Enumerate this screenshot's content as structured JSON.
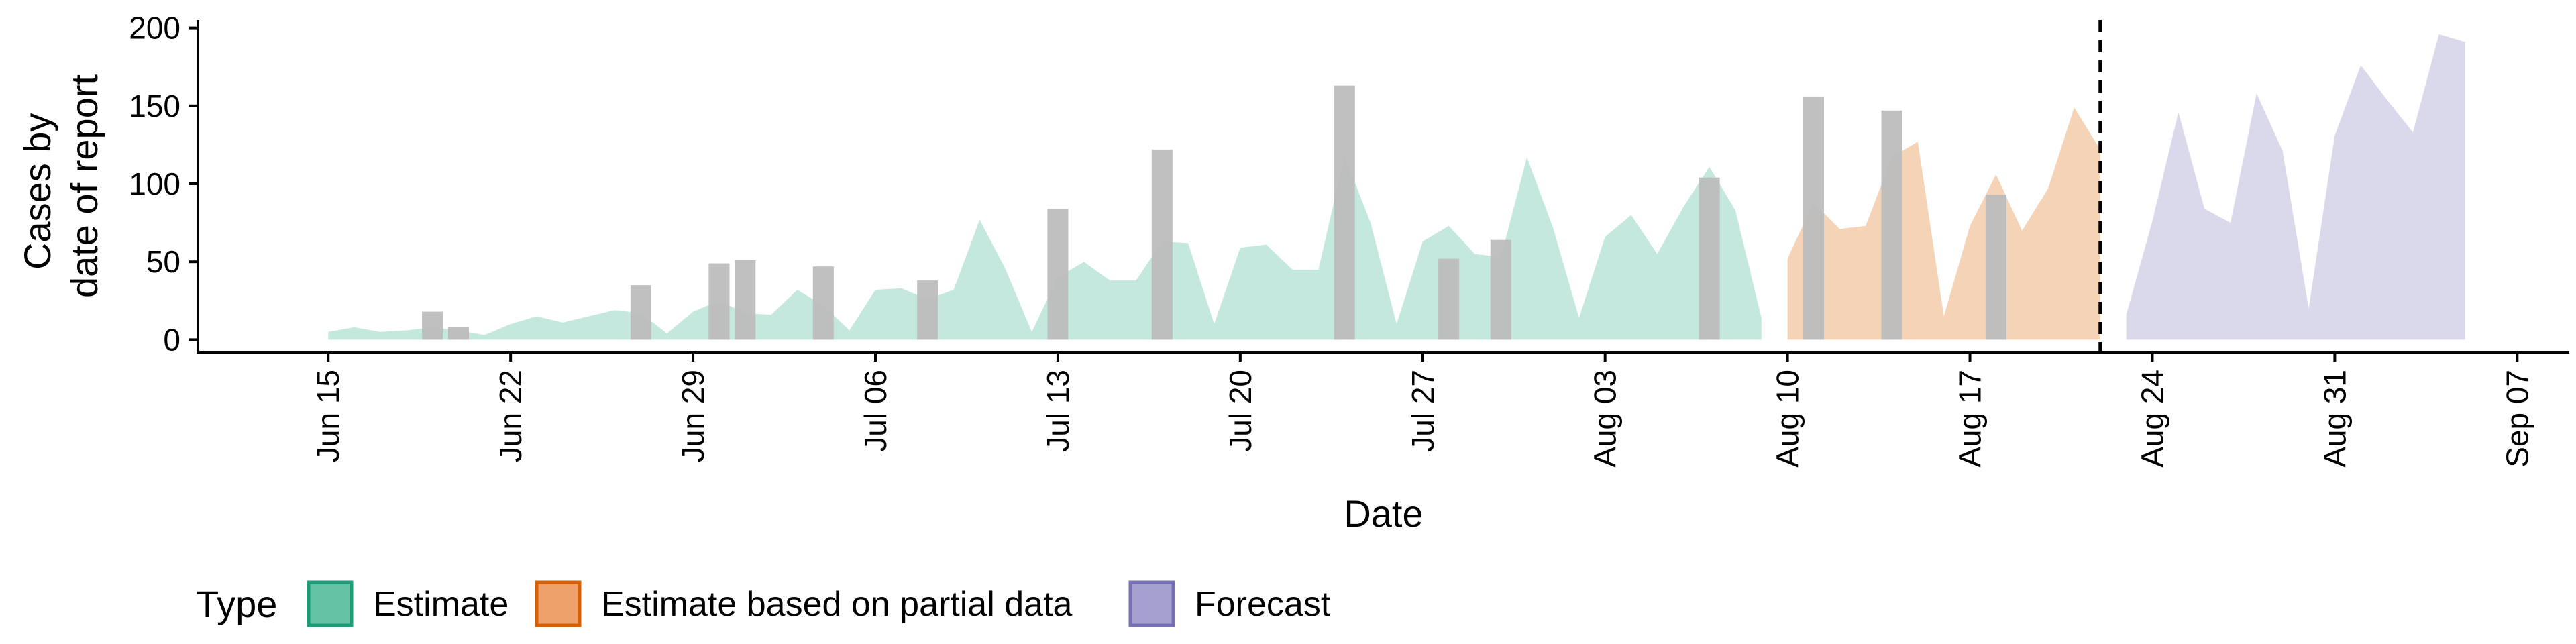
{
  "chart_data": {
    "type": "area",
    "xlabel": "Date",
    "ylabel_lines": [
      "Cases by",
      "date of report"
    ],
    "ylim": [
      -8,
      205
    ],
    "yticks": [
      0,
      50,
      100,
      150,
      200
    ],
    "x_range": [
      "2020-06-10",
      "2020-09-09"
    ],
    "x_ticks": [
      {
        "date": "2020-06-15",
        "label": "Jun 15"
      },
      {
        "date": "2020-06-22",
        "label": "Jun 22"
      },
      {
        "date": "2020-06-29",
        "label": "Jun 29"
      },
      {
        "date": "2020-07-06",
        "label": "Jul 06"
      },
      {
        "date": "2020-07-13",
        "label": "Jul 13"
      },
      {
        "date": "2020-07-20",
        "label": "Jul 20"
      },
      {
        "date": "2020-07-27",
        "label": "Jul 27"
      },
      {
        "date": "2020-08-03",
        "label": "Aug 03"
      },
      {
        "date": "2020-08-10",
        "label": "Aug 10"
      },
      {
        "date": "2020-08-17",
        "label": "Aug 17"
      },
      {
        "date": "2020-08-24",
        "label": "Aug 24"
      },
      {
        "date": "2020-08-31",
        "label": "Aug 31"
      },
      {
        "date": "2020-09-07",
        "label": "Sep 07"
      }
    ],
    "forecast_boundary_date": "2020-08-22",
    "legend": {
      "title": "Type",
      "position": "bottom-left",
      "entries": [
        {
          "name": "Estimate",
          "fill": "#66c2a5",
          "stroke": "#1b9e77"
        },
        {
          "name": "Estimate based on partial data",
          "fill": "#eda06a",
          "stroke": "#d95f02"
        },
        {
          "name": "Forecast",
          "fill": "#a5a0cd",
          "stroke": "#7570b3"
        }
      ]
    },
    "series": [
      {
        "name": "Estimate",
        "fill": "#c4e8dd",
        "points": [
          [
            "2020-06-15",
            5
          ],
          [
            "2020-06-16",
            8
          ],
          [
            "2020-06-17",
            5
          ],
          [
            "2020-06-18",
            6
          ],
          [
            "2020-06-19",
            8
          ],
          [
            "2020-06-20",
            6
          ],
          [
            "2020-06-21",
            3
          ],
          [
            "2020-06-22",
            10
          ],
          [
            "2020-06-23",
            15
          ],
          [
            "2020-06-24",
            11
          ],
          [
            "2020-06-25",
            15
          ],
          [
            "2020-06-26",
            19
          ],
          [
            "2020-06-27",
            17
          ],
          [
            "2020-06-28",
            4
          ],
          [
            "2020-06-29",
            18
          ],
          [
            "2020-06-30",
            25
          ],
          [
            "2020-07-01",
            17
          ],
          [
            "2020-07-02",
            16
          ],
          [
            "2020-07-03",
            32
          ],
          [
            "2020-07-04",
            22
          ],
          [
            "2020-07-05",
            6
          ],
          [
            "2020-07-06",
            32
          ],
          [
            "2020-07-07",
            33
          ],
          [
            "2020-07-08",
            26
          ],
          [
            "2020-07-09",
            32
          ],
          [
            "2020-07-10",
            77
          ],
          [
            "2020-07-11",
            45
          ],
          [
            "2020-07-12",
            5
          ],
          [
            "2020-07-13",
            40
          ],
          [
            "2020-07-14",
            50
          ],
          [
            "2020-07-15",
            38
          ],
          [
            "2020-07-16",
            38
          ],
          [
            "2020-07-17",
            63
          ],
          [
            "2020-07-18",
            62
          ],
          [
            "2020-07-19",
            10
          ],
          [
            "2020-07-20",
            59
          ],
          [
            "2020-07-21",
            61
          ],
          [
            "2020-07-22",
            45
          ],
          [
            "2020-07-23",
            45
          ],
          [
            "2020-07-24",
            118
          ],
          [
            "2020-07-25",
            75
          ],
          [
            "2020-07-26",
            10
          ],
          [
            "2020-07-27",
            63
          ],
          [
            "2020-07-28",
            73
          ],
          [
            "2020-07-29",
            55
          ],
          [
            "2020-07-30",
            53
          ],
          [
            "2020-07-31",
            117
          ],
          [
            "2020-08-01",
            72
          ],
          [
            "2020-08-02",
            14
          ],
          [
            "2020-08-03",
            66
          ],
          [
            "2020-08-04",
            80
          ],
          [
            "2020-08-05",
            55
          ],
          [
            "2020-08-06",
            85
          ],
          [
            "2020-08-07",
            111
          ],
          [
            "2020-08-08",
            83
          ],
          [
            "2020-08-09",
            14
          ]
        ]
      },
      {
        "name": "Estimate based on partial data",
        "fill": "#f5d3b7",
        "points": [
          [
            "2020-08-10",
            52
          ],
          [
            "2020-08-11",
            88
          ],
          [
            "2020-08-12",
            71
          ],
          [
            "2020-08-13",
            73
          ],
          [
            "2020-08-14",
            117
          ],
          [
            "2020-08-15",
            127
          ],
          [
            "2020-08-16",
            15
          ],
          [
            "2020-08-17",
            73
          ],
          [
            "2020-08-18",
            106
          ],
          [
            "2020-08-19",
            70
          ],
          [
            "2020-08-20",
            97
          ],
          [
            "2020-08-21",
            149
          ],
          [
            "2020-08-22",
            122
          ]
        ]
      },
      {
        "name": "Forecast",
        "fill": "#dad8eb",
        "points": [
          [
            "2020-08-23",
            16
          ],
          [
            "2020-08-24",
            76
          ],
          [
            "2020-08-25",
            146
          ],
          [
            "2020-08-26",
            84
          ],
          [
            "2020-08-27",
            75
          ],
          [
            "2020-08-28",
            158
          ],
          [
            "2020-08-29",
            121
          ],
          [
            "2020-08-30",
            20
          ],
          [
            "2020-08-31",
            131
          ],
          [
            "2020-09-01",
            176
          ],
          [
            "2020-09-02",
            154
          ],
          [
            "2020-09-03",
            133
          ],
          [
            "2020-09-04",
            196
          ],
          [
            "2020-09-05",
            191
          ]
        ]
      }
    ],
    "bars": {
      "color": "#bdbdbd",
      "opacity": 0.95,
      "points": [
        [
          "2020-06-19",
          18
        ],
        [
          "2020-06-20",
          8
        ],
        [
          "2020-06-27",
          35
        ],
        [
          "2020-06-30",
          49
        ],
        [
          "2020-07-01",
          51
        ],
        [
          "2020-07-04",
          47
        ],
        [
          "2020-07-08",
          38
        ],
        [
          "2020-07-13",
          84
        ],
        [
          "2020-07-17",
          122
        ],
        [
          "2020-07-24",
          163
        ],
        [
          "2020-07-28",
          52
        ],
        [
          "2020-07-30",
          64
        ],
        [
          "2020-08-07",
          104
        ],
        [
          "2020-08-11",
          156
        ],
        [
          "2020-08-14",
          147
        ],
        [
          "2020-08-18",
          93
        ]
      ]
    }
  }
}
